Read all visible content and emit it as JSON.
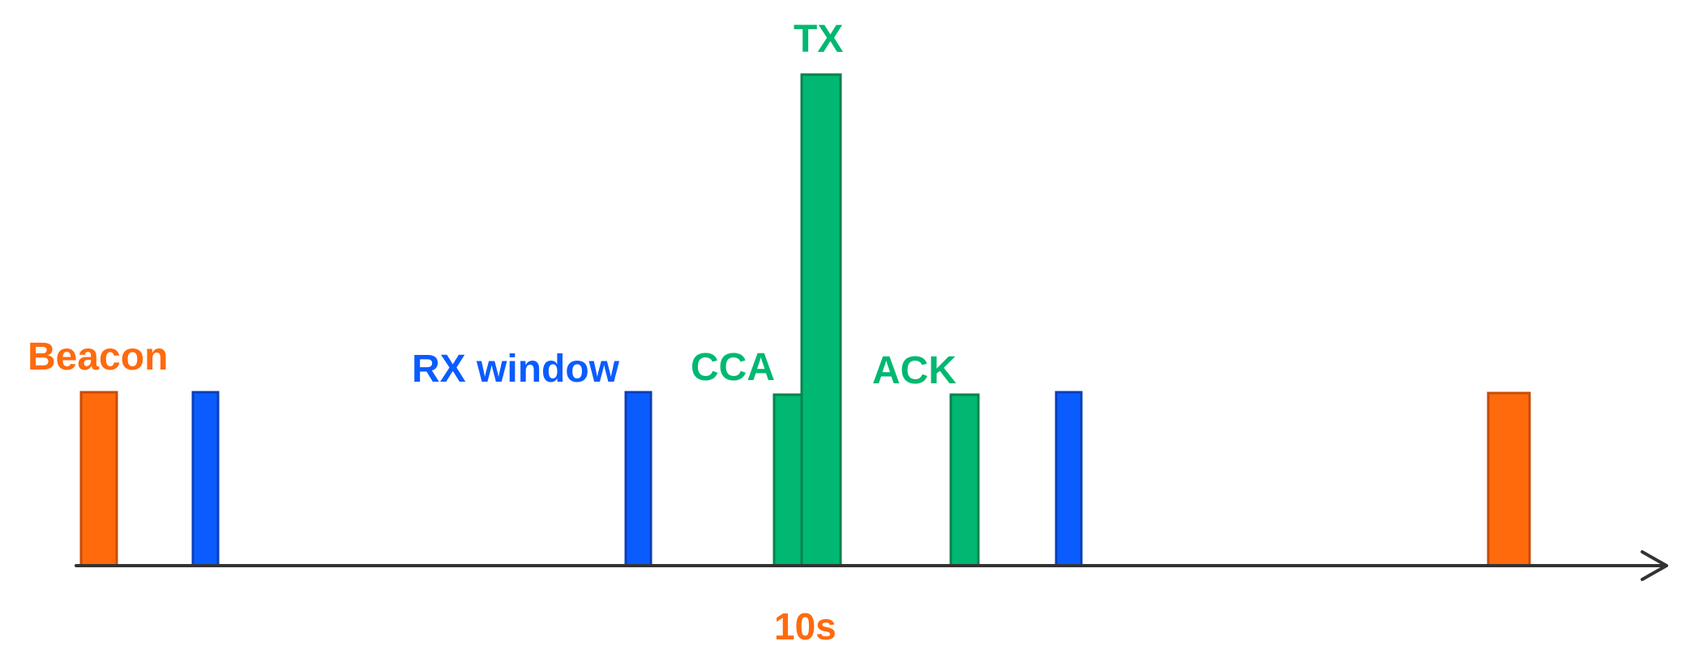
{
  "colors": {
    "beacon_fill": "#FF6A0D",
    "beacon_stroke": "#C74C08",
    "rx_fill": "#0B5CFF",
    "rx_stroke": "#0A3FB8",
    "tx_fill": "#00B871",
    "tx_stroke": "#06834F",
    "axis": "#333333"
  },
  "labels": {
    "beacon": "Beacon",
    "rx_window": "RX window",
    "cca": "CCA",
    "tx": "TX",
    "ack": "ACK",
    "period": "10s"
  },
  "timeline": {
    "pulses": [
      {
        "name": "beacon-pulse-start",
        "kind": "beacon"
      },
      {
        "name": "rx-window-pulse-1",
        "kind": "rx"
      },
      {
        "name": "rx-window-pulse-2",
        "kind": "rx"
      },
      {
        "name": "cca-pulse",
        "kind": "cca"
      },
      {
        "name": "tx-pulse",
        "kind": "tx"
      },
      {
        "name": "ack-pulse",
        "kind": "ack"
      },
      {
        "name": "rx-window-pulse-3",
        "kind": "rx"
      },
      {
        "name": "beacon-pulse-end",
        "kind": "beacon"
      }
    ]
  }
}
